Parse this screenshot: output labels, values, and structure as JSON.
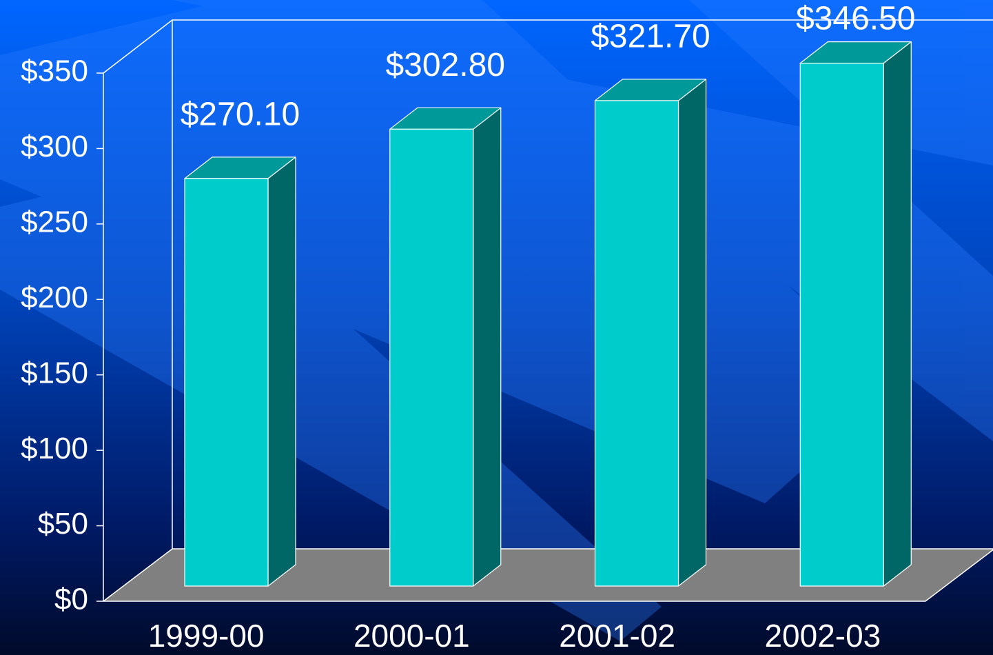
{
  "chart_data": {
    "type": "bar3d",
    "categories": [
      "1999-00",
      "2000-01",
      "2001-02",
      "2002-03"
    ],
    "values": [
      270.1,
      302.8,
      321.7,
      346.5
    ],
    "value_labels": [
      "$270.10",
      "$302.80",
      "$321.70",
      "$346.50"
    ],
    "ylim": [
      0,
      350
    ],
    "yticks": [
      {
        "value": 0,
        "label": "$0"
      },
      {
        "value": 50,
        "label": "$50"
      },
      {
        "value": 100,
        "label": "$100"
      },
      {
        "value": 150,
        "label": "$150"
      },
      {
        "value": 200,
        "label": "$200"
      },
      {
        "value": 250,
        "label": "$250"
      },
      {
        "value": 300,
        "label": "$300"
      },
      {
        "value": 350,
        "label": "$350"
      }
    ],
    "color": "#00cccc",
    "top_color": "#009999",
    "side_color": "#006666",
    "floor_color": "#808080"
  }
}
